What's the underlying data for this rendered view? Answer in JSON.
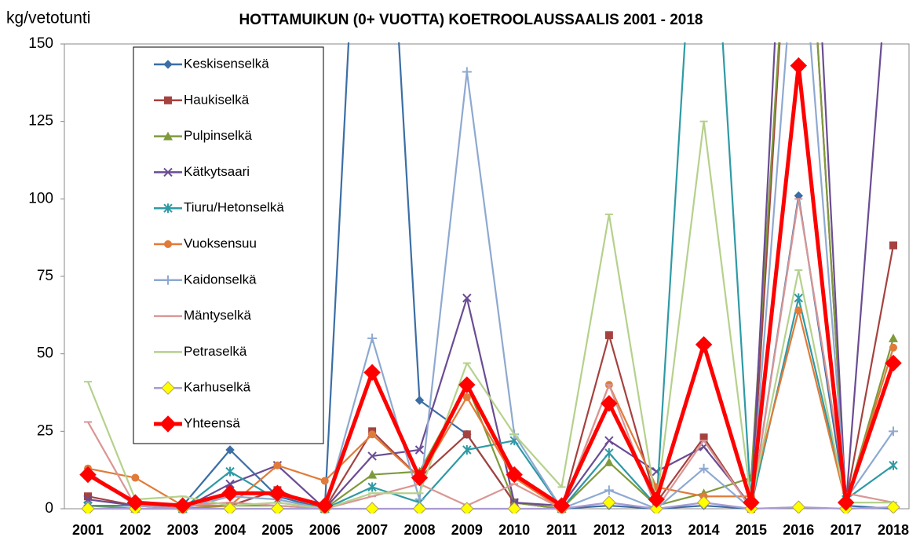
{
  "chart_data": {
    "type": "line",
    "title": "HOTTAMUIKUN (0+ VUOTTA) KOETROOLAUSSAALIS 2001 - 2018",
    "y_label": "kg/vetotunti",
    "categories": [
      "2001",
      "2002",
      "2003",
      "2004",
      "2005",
      "2006",
      "2007",
      "2008",
      "2009",
      "2010",
      "2011",
      "2012",
      "2013",
      "2014",
      "2015",
      "2016",
      "2017",
      "2018"
    ],
    "ylim": [
      0,
      150
    ],
    "yticks": [
      0,
      25,
      50,
      75,
      100,
      125,
      150
    ],
    "grid": false,
    "series": [
      {
        "name": "Keskisenselkä",
        "color": "#3b6ea5",
        "marker": "diamond",
        "values": [
          1,
          1,
          1,
          19,
          4,
          0,
          300,
          35,
          24,
          2,
          0,
          1,
          0,
          1,
          0,
          101,
          1,
          0
        ]
      },
      {
        "name": "Haukiselkä",
        "color": "#a5423f",
        "marker": "square",
        "values": [
          4,
          1,
          1,
          1,
          6,
          0,
          25,
          10,
          24,
          2,
          0,
          56,
          2,
          23,
          0,
          250,
          2,
          85
        ]
      },
      {
        "name": "Pulpinselkä",
        "color": "#7f9a3c",
        "marker": "triangle",
        "values": [
          1,
          0,
          0,
          1,
          1,
          0,
          11,
          12,
          40,
          2,
          0,
          15,
          1,
          5,
          10,
          250,
          2,
          55
        ]
      },
      {
        "name": "Kätkytsaari",
        "color": "#6a4c93",
        "marker": "x",
        "values": [
          3,
          1,
          0,
          8,
          14,
          0,
          17,
          19,
          68,
          2,
          1,
          22,
          12,
          20,
          1,
          300,
          1,
          200
        ]
      },
      {
        "name": "Tiuru/Hetonselkä",
        "color": "#2e9aa5",
        "marker": "star",
        "values": [
          1,
          1,
          0,
          12,
          3,
          0,
          7,
          2,
          19,
          22,
          0,
          18,
          1,
          250,
          1,
          68,
          3,
          14
        ]
      },
      {
        "name": "Vuoksensuu",
        "color": "#e07b39",
        "marker": "circle",
        "values": [
          13,
          10,
          1,
          1,
          14,
          9,
          24,
          10,
          36,
          10,
          0,
          40,
          7,
          4,
          4,
          64,
          2,
          52
        ]
      },
      {
        "name": "Kaidonselkä",
        "color": "#8ea9d1",
        "marker": "plus",
        "values": [
          12,
          1,
          0,
          4,
          3,
          0,
          55,
          3,
          141,
          24,
          0,
          6,
          0,
          13,
          0,
          200,
          3,
          25
        ]
      },
      {
        "name": "Mäntyselkä",
        "color": "#d99694",
        "marker": "dash",
        "values": [
          28,
          1,
          1,
          2,
          1,
          0,
          4,
          8,
          1,
          8,
          0,
          40,
          0,
          22,
          0,
          100,
          5,
          2
        ]
      },
      {
        "name": "Petraselkä",
        "color": "#b5d18c",
        "marker": "dash",
        "values": [
          41,
          3,
          4,
          1,
          2,
          0,
          5,
          5,
          47,
          24,
          7,
          95,
          1,
          125,
          2,
          77,
          2,
          2
        ]
      },
      {
        "name": "Karhuselkä",
        "color": "#a99bd3",
        "marker": "ydiamond",
        "values": [
          0,
          0,
          0,
          0,
          0,
          0,
          0,
          0,
          0,
          0,
          0,
          2,
          0,
          2,
          0,
          0.5,
          0,
          0.5
        ]
      },
      {
        "name": "Yhteensä",
        "color": "#ff0000",
        "marker": "bigdiamond",
        "values": [
          11,
          2,
          1,
          5,
          5,
          1,
          44,
          10,
          40,
          11,
          1,
          34,
          3,
          53,
          2,
          143,
          2,
          47
        ]
      }
    ]
  }
}
